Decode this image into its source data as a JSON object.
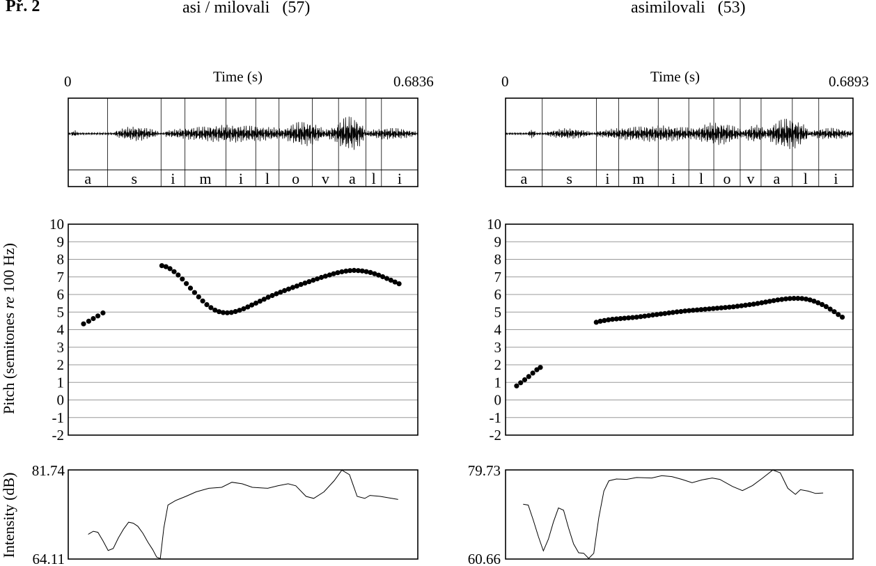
{
  "figure_label": "Př. 2",
  "chart_data": [
    {
      "type": "waveform",
      "title": "asi / milovali",
      "title_count": "(57)",
      "xlabel": "Time (s)",
      "x_start": "0",
      "x_end": "0.6836",
      "xlim": [
        0,
        0.6836
      ],
      "segments": [
        {
          "label": "a",
          "start": 0,
          "end": 0.0768
        },
        {
          "label": "s",
          "start": 0.0768,
          "end": 0.1815
        },
        {
          "label": "i",
          "start": 0.1815,
          "end": 0.2283
        },
        {
          "label": "m",
          "start": 0.2283,
          "end": 0.3085
        },
        {
          "label": "i",
          "start": 0.3085,
          "end": 0.3667
        },
        {
          "label": "l",
          "start": 0.3667,
          "end": 0.4122
        },
        {
          "label": "o",
          "start": 0.4122,
          "end": 0.4773
        },
        {
          "label": "v",
          "start": 0.4773,
          "end": 0.5286
        },
        {
          "label": "a",
          "start": 0.5286,
          "end": 0.5823
        },
        {
          "label": "l",
          "start": 0.5823,
          "end": 0.6125
        },
        {
          "label": "i",
          "start": 0.6125,
          "end": 0.6836
        }
      ]
    },
    {
      "type": "waveform",
      "title": "asimilovali",
      "title_count": "(53)",
      "xlabel": "Time (s)",
      "x_start": "0",
      "x_end": "0.6893",
      "xlim": [
        0,
        0.6893
      ],
      "segments": [
        {
          "label": "a",
          "start": 0,
          "end": 0.0728
        },
        {
          "label": "s",
          "start": 0.0728,
          "end": 0.1803
        },
        {
          "label": "i",
          "start": 0.1803,
          "end": 0.2243
        },
        {
          "label": "m",
          "start": 0.2243,
          "end": 0.3029
        },
        {
          "label": "i",
          "start": 0.3029,
          "end": 0.3635
        },
        {
          "label": "l",
          "start": 0.3635,
          "end": 0.4131
        },
        {
          "label": "o",
          "start": 0.4131,
          "end": 0.4655
        },
        {
          "label": "v",
          "start": 0.4655,
          "end": 0.5069
        },
        {
          "label": "a",
          "start": 0.5069,
          "end": 0.5689
        },
        {
          "label": "l",
          "start": 0.5689,
          "end": 0.6213
        },
        {
          "label": "i",
          "start": 0.6213,
          "end": 0.6893
        }
      ]
    },
    {
      "type": "scatter",
      "ylabel_pre": "Pitch (semitones ",
      "ylabel_em": "re",
      "ylabel_post": " 100 Hz)",
      "xlim": [
        0,
        0.6836
      ],
      "ylim": [
        -2,
        10
      ],
      "yticks": [
        "10",
        "9",
        "8",
        "7",
        "6",
        "5",
        "4",
        "3",
        "2",
        "1",
        "0",
        "-1",
        "-2"
      ],
      "grid": true,
      "series": [
        {
          "values": [
            [
              0.03,
              4.33
            ],
            [
              0.04,
              4.48
            ],
            [
              0.049,
              4.63
            ],
            [
              0.058,
              4.78
            ],
            [
              0.068,
              4.95
            ]
          ]
        },
        {
          "values": [
            [
              0.183,
              7.64
            ],
            [
              0.191,
              7.58
            ],
            [
              0.199,
              7.47
            ],
            [
              0.207,
              7.3
            ],
            [
              0.215,
              7.11
            ],
            [
              0.223,
              6.88
            ],
            [
              0.231,
              6.62
            ],
            [
              0.239,
              6.36
            ],
            [
              0.247,
              6.11
            ],
            [
              0.255,
              5.86
            ],
            [
              0.263,
              5.63
            ],
            [
              0.271,
              5.42
            ],
            [
              0.279,
              5.25
            ],
            [
              0.287,
              5.11
            ],
            [
              0.295,
              5.02
            ],
            [
              0.303,
              4.97
            ],
            [
              0.311,
              4.96
            ],
            [
              0.319,
              4.98
            ],
            [
              0.327,
              5.03
            ],
            [
              0.335,
              5.1
            ],
            [
              0.343,
              5.19
            ],
            [
              0.351,
              5.29
            ],
            [
              0.359,
              5.4
            ],
            [
              0.367,
              5.51
            ],
            [
              0.375,
              5.62
            ],
            [
              0.383,
              5.73
            ],
            [
              0.391,
              5.84
            ],
            [
              0.399,
              5.94
            ],
            [
              0.407,
              6.04
            ],
            [
              0.415,
              6.13
            ],
            [
              0.423,
              6.22
            ],
            [
              0.431,
              6.31
            ],
            [
              0.439,
              6.4
            ],
            [
              0.447,
              6.48
            ],
            [
              0.455,
              6.57
            ],
            [
              0.463,
              6.65
            ],
            [
              0.471,
              6.73
            ],
            [
              0.479,
              6.81
            ],
            [
              0.487,
              6.89
            ],
            [
              0.495,
              6.97
            ],
            [
              0.503,
              7.04
            ],
            [
              0.511,
              7.11
            ],
            [
              0.519,
              7.18
            ],
            [
              0.527,
              7.24
            ],
            [
              0.535,
              7.29
            ],
            [
              0.543,
              7.33
            ],
            [
              0.551,
              7.36
            ],
            [
              0.559,
              7.37
            ],
            [
              0.567,
              7.36
            ],
            [
              0.575,
              7.34
            ],
            [
              0.583,
              7.3
            ],
            [
              0.591,
              7.25
            ],
            [
              0.599,
              7.18
            ],
            [
              0.607,
              7.1
            ],
            [
              0.615,
              7.01
            ],
            [
              0.623,
              6.91
            ],
            [
              0.631,
              6.81
            ],
            [
              0.639,
              6.71
            ],
            [
              0.647,
              6.61
            ]
          ]
        }
      ]
    },
    {
      "type": "scatter",
      "xlim": [
        0,
        0.6893
      ],
      "ylim": [
        -2,
        10
      ],
      "yticks": [
        "10",
        "9",
        "8",
        "7",
        "6",
        "5",
        "4",
        "3",
        "2",
        "1",
        "0",
        "-1",
        "-2"
      ],
      "grid": true,
      "series": [
        {
          "values": [
            [
              0.022,
              0.8
            ],
            [
              0.03,
              0.98
            ],
            [
              0.038,
              1.15
            ],
            [
              0.046,
              1.33
            ],
            [
              0.054,
              1.53
            ],
            [
              0.062,
              1.72
            ],
            [
              0.069,
              1.85
            ]
          ]
        },
        {
          "values": [
            [
              0.18,
              4.42
            ],
            [
              0.188,
              4.48
            ],
            [
              0.196,
              4.52
            ],
            [
              0.204,
              4.56
            ],
            [
              0.212,
              4.59
            ],
            [
              0.22,
              4.61
            ],
            [
              0.228,
              4.63
            ],
            [
              0.236,
              4.65
            ],
            [
              0.244,
              4.67
            ],
            [
              0.252,
              4.69
            ],
            [
              0.26,
              4.71
            ],
            [
              0.268,
              4.74
            ],
            [
              0.276,
              4.77
            ],
            [
              0.284,
              4.8
            ],
            [
              0.292,
              4.83
            ],
            [
              0.3,
              4.86
            ],
            [
              0.308,
              4.89
            ],
            [
              0.316,
              4.92
            ],
            [
              0.324,
              4.95
            ],
            [
              0.332,
              4.98
            ],
            [
              0.34,
              5.01
            ],
            [
              0.348,
              5.03
            ],
            [
              0.356,
              5.06
            ],
            [
              0.364,
              5.08
            ],
            [
              0.372,
              5.1
            ],
            [
              0.38,
              5.12
            ],
            [
              0.388,
              5.14
            ],
            [
              0.396,
              5.16
            ],
            [
              0.404,
              5.18
            ],
            [
              0.412,
              5.2
            ],
            [
              0.42,
              5.22
            ],
            [
              0.428,
              5.24
            ],
            [
              0.436,
              5.26
            ],
            [
              0.444,
              5.28
            ],
            [
              0.452,
              5.3
            ],
            [
              0.46,
              5.33
            ],
            [
              0.468,
              5.36
            ],
            [
              0.476,
              5.39
            ],
            [
              0.484,
              5.42
            ],
            [
              0.492,
              5.45
            ],
            [
              0.5,
              5.49
            ],
            [
              0.508,
              5.53
            ],
            [
              0.516,
              5.57
            ],
            [
              0.524,
              5.61
            ],
            [
              0.532,
              5.65
            ],
            [
              0.54,
              5.69
            ],
            [
              0.548,
              5.72
            ],
            [
              0.556,
              5.75
            ],
            [
              0.564,
              5.77
            ],
            [
              0.572,
              5.78
            ],
            [
              0.58,
              5.78
            ],
            [
              0.588,
              5.77
            ],
            [
              0.596,
              5.74
            ],
            [
              0.604,
              5.69
            ],
            [
              0.612,
              5.62
            ],
            [
              0.62,
              5.53
            ],
            [
              0.628,
              5.43
            ],
            [
              0.636,
              5.31
            ],
            [
              0.644,
              5.17
            ],
            [
              0.652,
              5.02
            ],
            [
              0.66,
              4.86
            ],
            [
              0.668,
              4.71
            ]
          ]
        }
      ]
    },
    {
      "type": "line",
      "ylabel": "Intensity (dB)",
      "ytop": "81.74",
      "ybottom": "64.11",
      "xlim": [
        0,
        0.6836
      ],
      "ylim": [
        64.11,
        81.74
      ],
      "series": [
        {
          "values": [
            [
              0.039,
              69.0
            ],
            [
              0.049,
              69.6
            ],
            [
              0.058,
              69.4
            ],
            [
              0.068,
              67.7
            ],
            [
              0.078,
              65.8
            ],
            [
              0.088,
              66.2
            ],
            [
              0.098,
              68.3
            ],
            [
              0.108,
              70.0
            ],
            [
              0.118,
              71.4
            ],
            [
              0.127,
              71.2
            ],
            [
              0.136,
              70.6
            ],
            [
              0.146,
              69.2
            ],
            [
              0.156,
              67.4
            ],
            [
              0.165,
              66.0
            ],
            [
              0.173,
              64.5
            ],
            [
              0.18,
              64.2
            ],
            [
              0.187,
              70.3
            ],
            [
              0.195,
              74.8
            ],
            [
              0.21,
              75.7
            ],
            [
              0.23,
              76.5
            ],
            [
              0.25,
              77.4
            ],
            [
              0.275,
              78.1
            ],
            [
              0.3,
              78.3
            ],
            [
              0.32,
              79.3
            ],
            [
              0.34,
              79.0
            ],
            [
              0.36,
              78.3
            ],
            [
              0.39,
              78.1
            ],
            [
              0.41,
              78.6
            ],
            [
              0.43,
              79.0
            ],
            [
              0.445,
              78.6
            ],
            [
              0.465,
              76.5
            ],
            [
              0.48,
              76.1
            ],
            [
              0.5,
              77.4
            ],
            [
              0.52,
              79.6
            ],
            [
              0.535,
              81.7
            ],
            [
              0.55,
              80.8
            ],
            [
              0.565,
              76.5
            ],
            [
              0.58,
              76.1
            ],
            [
              0.59,
              76.7
            ],
            [
              0.61,
              76.5
            ],
            [
              0.645,
              75.9
            ]
          ]
        }
      ]
    },
    {
      "type": "line",
      "ytop": "79.73",
      "ybottom": "60.66",
      "xlim": [
        0,
        0.6893
      ],
      "ylim": [
        60.66,
        79.73
      ],
      "series": [
        {
          "values": [
            [
              0.035,
              72.4
            ],
            [
              0.045,
              72.2
            ],
            [
              0.055,
              69.0
            ],
            [
              0.065,
              65.5
            ],
            [
              0.075,
              62.4
            ],
            [
              0.085,
              64.9
            ],
            [
              0.095,
              68.6
            ],
            [
              0.105,
              71.6
            ],
            [
              0.115,
              71.1
            ],
            [
              0.125,
              67.3
            ],
            [
              0.135,
              63.9
            ],
            [
              0.145,
              62.0
            ],
            [
              0.155,
              61.9
            ],
            [
              0.165,
              60.8
            ],
            [
              0.175,
              61.9
            ],
            [
              0.185,
              69.5
            ],
            [
              0.195,
              75.2
            ],
            [
              0.205,
              77.4
            ],
            [
              0.22,
              77.8
            ],
            [
              0.24,
              77.7
            ],
            [
              0.26,
              78.1
            ],
            [
              0.29,
              78.0
            ],
            [
              0.31,
              78.5
            ],
            [
              0.33,
              78.3
            ],
            [
              0.35,
              77.7
            ],
            [
              0.37,
              77.0
            ],
            [
              0.39,
              77.6
            ],
            [
              0.41,
              78.0
            ],
            [
              0.425,
              77.7
            ],
            [
              0.45,
              76.2
            ],
            [
              0.47,
              75.3
            ],
            [
              0.49,
              76.4
            ],
            [
              0.51,
              78.0
            ],
            [
              0.53,
              79.7
            ],
            [
              0.545,
              79.1
            ],
            [
              0.56,
              75.8
            ],
            [
              0.575,
              74.5
            ],
            [
              0.585,
              75.5
            ],
            [
              0.6,
              75.2
            ],
            [
              0.615,
              74.7
            ],
            [
              0.63,
              74.8
            ]
          ]
        }
      ]
    }
  ]
}
